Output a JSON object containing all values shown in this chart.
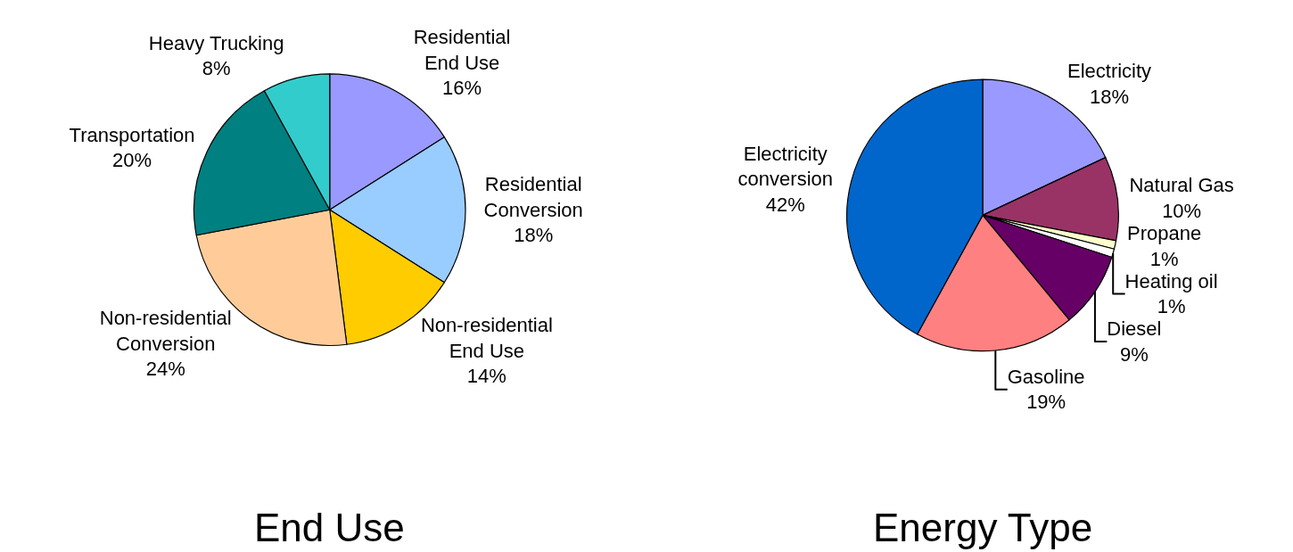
{
  "chart_data": [
    {
      "type": "pie",
      "title": "End Use",
      "categories": [
        "Residential End Use",
        "Residential Conversion",
        "Non-residential End Use",
        "Non-residential Conversion",
        "Transportation",
        "Heavy Trucking"
      ],
      "values": [
        16,
        18,
        14,
        24,
        20,
        8
      ],
      "value_labels": [
        "16%",
        "18%",
        "14%",
        "24%",
        "20%",
        "8%"
      ],
      "colors": [
        "#9999ff",
        "#99ccff",
        "#ffcc00",
        "#ffcc99",
        "#008080",
        "#33cccc"
      ],
      "legend": false
    },
    {
      "type": "pie",
      "title": "Energy Type",
      "categories": [
        "Electricity",
        "Natural Gas",
        "Propane",
        "Heating oil",
        "Diesel",
        "Gasoline",
        "Electricity conversion"
      ],
      "values": [
        18,
        10,
        1,
        1,
        9,
        19,
        42
      ],
      "value_labels": [
        "18%",
        "10%",
        "1%",
        "1%",
        "9%",
        "19%",
        "42%"
      ],
      "colors": [
        "#9999ff",
        "#993366",
        "#ffffcc",
        "#ffffff",
        "#660066",
        "#ff8080",
        "#0066cc"
      ],
      "legend": false
    }
  ]
}
